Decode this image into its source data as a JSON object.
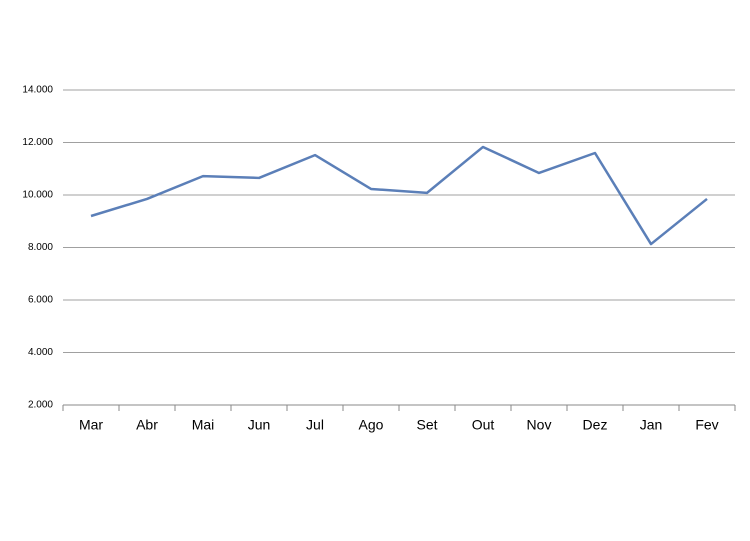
{
  "chart_data": {
    "type": "line",
    "categories": [
      "Mar",
      "Abr",
      "Mai",
      "Jun",
      "Jul",
      "Ago",
      "Set",
      "Out",
      "Nov",
      "Dez",
      "Jan",
      "Fev"
    ],
    "series": [
      {
        "color": "#5b7fb8",
        "values": [
          9200,
          9850,
          10720,
          10650,
          11520,
          10230,
          10080,
          11830,
          10840,
          11600,
          8130,
          9850
        ]
      }
    ],
    "ylim": [
      2000,
      14000
    ],
    "yticks": [
      {
        "value": 2000,
        "label": "2.000"
      },
      {
        "value": 4000,
        "label": "4.000"
      },
      {
        "value": 6000,
        "label": "6.000"
      },
      {
        "value": 8000,
        "label": "8.000"
      },
      {
        "value": 10000,
        "label": "10.000"
      },
      {
        "value": 12000,
        "label": "12.000"
      },
      {
        "value": 14000,
        "label": "14.000"
      }
    ],
    "grid": true
  }
}
